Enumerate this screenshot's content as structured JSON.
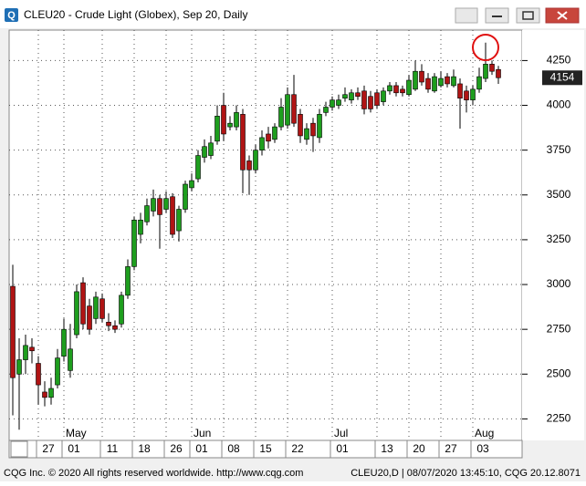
{
  "window": {
    "title": "CLEU20 - Crude Light (Globex), Sep 20, Daily",
    "icon": "Q"
  },
  "footer": {
    "left": "CQG Inc. © 2020 All rights reserved worldwide. http://www.cqg.com",
    "right": "CLEU20,D | 08/07/2020 13:45:10, CQG 20.12.8071"
  },
  "chart_data": {
    "type": "candlestick",
    "categories": [
      null,
      null,
      null,
      null,
      "27",
      null,
      null,
      null,
      "01",
      null,
      null,
      null,
      null,
      null,
      "11",
      null,
      null,
      null,
      null,
      "18",
      null,
      null,
      null,
      null,
      "26",
      null,
      null,
      null,
      "01",
      null,
      null,
      null,
      null,
      "08",
      null,
      null,
      null,
      null,
      "15",
      null,
      null,
      null,
      null,
      "22",
      null,
      null,
      null,
      null,
      null,
      null,
      "01",
      null,
      null,
      null,
      null,
      null,
      null,
      "13",
      null,
      null,
      null,
      null,
      "20",
      null,
      null,
      null,
      null,
      "27",
      null,
      null,
      null,
      null,
      "03",
      null,
      null,
      null,
      null
    ],
    "months": [
      "May",
      "Jun",
      "Jul",
      "Aug"
    ],
    "open": [
      2990,
      2500,
      2580,
      2650,
      2560,
      2400,
      2370,
      2440,
      2600,
      2520,
      2720,
      3010,
      2880,
      2810,
      2920,
      2790,
      2770,
      2780,
      2940,
      3100,
      3280,
      3350,
      3410,
      3480,
      3420,
      3490,
      3300,
      3420,
      3540,
      3590,
      3710,
      3720,
      3800,
      4000,
      3880,
      3880,
      3950,
      3690,
      3640,
      3750,
      3840,
      3810,
      3880,
      3890,
      4060,
      3950,
      3810,
      3900,
      3820,
      3960,
      3990,
      4000,
      4040,
      4030,
      4070,
      4080,
      4050,
      4070,
      4020,
      4080,
      4110,
      4090,
      4060,
      4090,
      4190,
      4150,
      4080,
      4110,
      4160,
      4110,
      4120,
      4080,
      4030,
      4090,
      4150,
      4230,
      4200
    ],
    "high": [
      3110,
      2700,
      2720,
      2700,
      2600,
      2460,
      2480,
      2640,
      2810,
      2780,
      3000,
      3040,
      2920,
      2960,
      2950,
      2840,
      2800,
      2960,
      3140,
      3380,
      3400,
      3480,
      3530,
      3500,
      3520,
      3510,
      3440,
      3580,
      3620,
      3750,
      3810,
      3830,
      4000,
      4070,
      3940,
      4000,
      3980,
      3720,
      3780,
      3860,
      3880,
      3900,
      4040,
      4100,
      4170,
      3980,
      3900,
      3930,
      3980,
      4020,
      4050,
      4060,
      4100,
      4090,
      4100,
      4110,
      4080,
      4090,
      4100,
      4130,
      4130,
      4110,
      4170,
      4250,
      4230,
      4180,
      4180,
      4190,
      4180,
      4200,
      4150,
      4110,
      4110,
      4210,
      4350,
      4250,
      4220
    ],
    "low": [
      2270,
      2190,
      2500,
      2560,
      2330,
      2320,
      2330,
      2420,
      2570,
      2480,
      2700,
      2750,
      2720,
      2780,
      2790,
      2740,
      2730,
      2760,
      2920,
      3080,
      3230,
      3330,
      3380,
      3200,
      3400,
      3260,
      3240,
      3400,
      3520,
      3570,
      3680,
      3700,
      3780,
      3800,
      3860,
      3860,
      3510,
      3500,
      3620,
      3720,
      3760,
      3790,
      3860,
      3870,
      3880,
      3790,
      3780,
      3740,
      3790,
      3940,
      3970,
      3980,
      4020,
      4010,
      4030,
      3950,
      3960,
      3980,
      4000,
      4060,
      4050,
      4050,
      4050,
      4080,
      4110,
      4070,
      4070,
      4100,
      4100,
      4100,
      3870,
      3960,
      4000,
      4070,
      4130,
      4170,
      4120
    ],
    "close": [
      2480,
      2580,
      2660,
      2630,
      2440,
      2370,
      2420,
      2590,
      2750,
      2640,
      2960,
      2780,
      2750,
      2930,
      2810,
      2770,
      2750,
      2940,
      3100,
      3360,
      3360,
      3440,
      3480,
      3390,
      3480,
      3280,
      3420,
      3560,
      3580,
      3720,
      3770,
      3790,
      3940,
      3840,
      3900,
      3960,
      3640,
      3640,
      3750,
      3820,
      3800,
      3880,
      3990,
      4060,
      3900,
      3830,
      3870,
      3830,
      3950,
      3990,
      4030,
      4030,
      4060,
      4070,
      4050,
      3980,
      3980,
      4000,
      4080,
      4110,
      4070,
      4070,
      4140,
      4190,
      4130,
      4090,
      4160,
      4150,
      4120,
      4160,
      4040,
      4030,
      4090,
      4160,
      4230,
      4190,
      4154
    ],
    "up_color": "#1e9e1e",
    "down_color": "#b01414",
    "ylim": [
      2130,
      4420
    ],
    "yticks": [
      2250,
      2500,
      2750,
      3000,
      3250,
      3500,
      3750,
      4000,
      4250
    ],
    "grid": true,
    "last_price": 4154
  }
}
